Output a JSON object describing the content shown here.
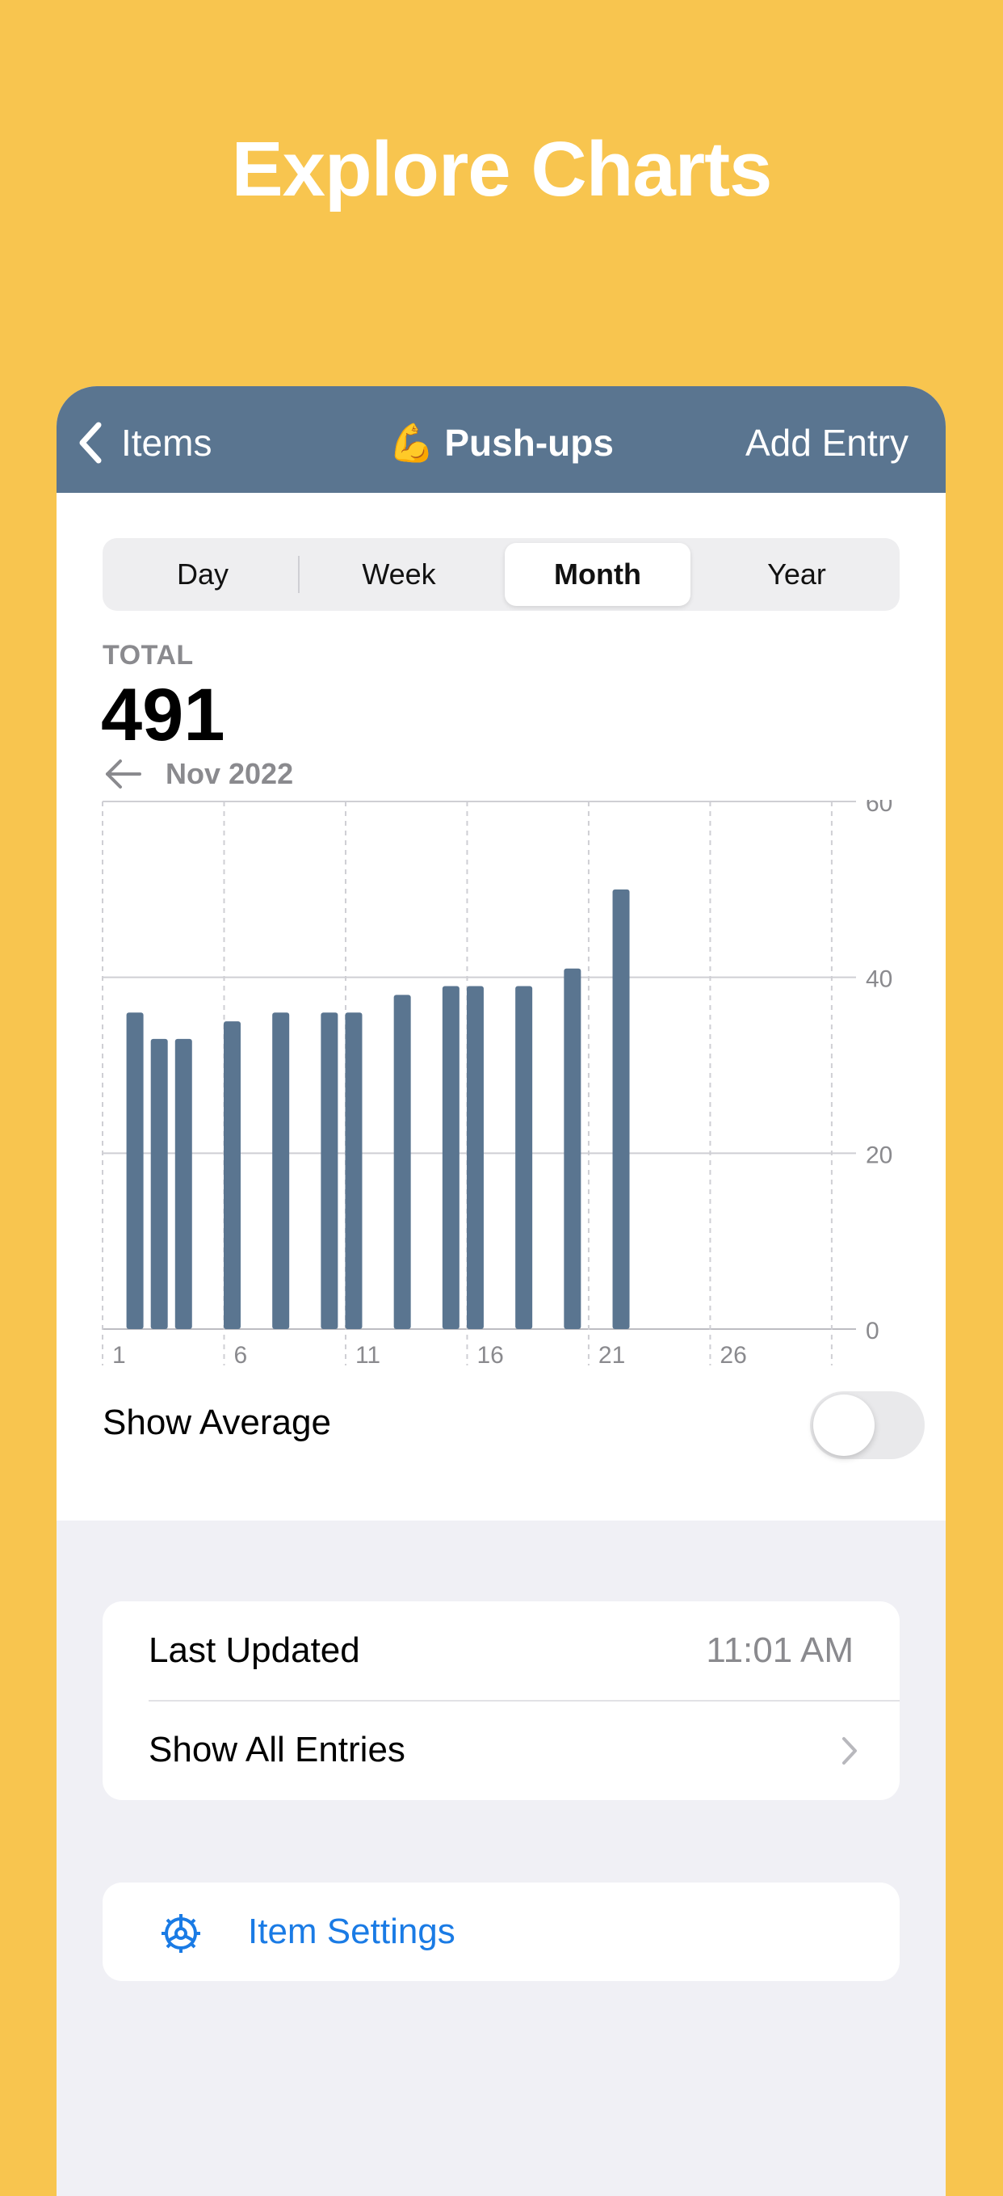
{
  "headline": "Explore Charts",
  "nav": {
    "back_label": "Items",
    "emoji": "💪",
    "title": "Push-ups",
    "action_label": "Add Entry"
  },
  "segments": [
    "Day",
    "Week",
    "Month",
    "Year"
  ],
  "selected_segment": "Month",
  "summary": {
    "total_label": "TOTAL",
    "total_value": "491",
    "period": "Nov 2022"
  },
  "chart_data": {
    "type": "bar",
    "x": [
      2,
      3,
      4,
      6,
      8,
      10,
      11,
      13,
      15,
      16,
      18,
      20,
      22
    ],
    "values": [
      36,
      33,
      33,
      35,
      36,
      36,
      36,
      38,
      39,
      39,
      39,
      41,
      50
    ],
    "x_tick_labels": [
      "1",
      "6",
      "11",
      "16",
      "21",
      "26"
    ],
    "y_ticks": [
      0,
      20,
      40,
      60
    ],
    "xlim": [
      1,
      31
    ],
    "ylim": [
      0,
      60
    ],
    "y_axis_side": "right",
    "grid": true,
    "bar_color": "#5A7590"
  },
  "show_average": {
    "label": "Show Average",
    "on": false
  },
  "details": {
    "last_updated_label": "Last Updated",
    "last_updated_value": "11:01 AM",
    "show_all_label": "Show All Entries"
  },
  "settings_label": "Item Settings",
  "colors": {
    "background": "#F8C54F",
    "nav": "#5A7590",
    "accent": "#1A7BE5",
    "secondary_text": "#8A8A8E"
  }
}
